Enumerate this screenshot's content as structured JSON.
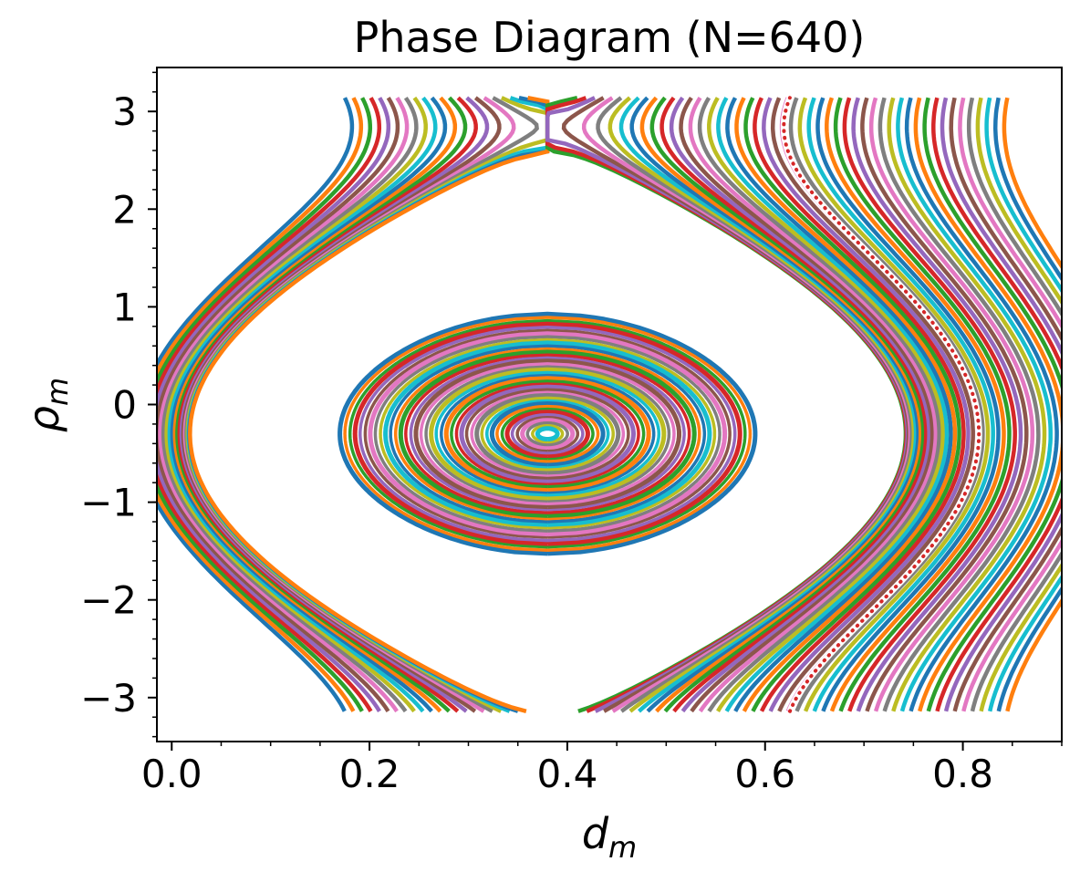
{
  "chart_data": {
    "type": "line",
    "title": "Phase Diagram (N=640)",
    "xlabel": "d",
    "xlabel_sub": "m",
    "ylabel": "ρ",
    "ylabel_sub": "m",
    "xlim": [
      -0.015,
      0.9
    ],
    "ylim": [
      -3.45,
      3.45
    ],
    "xticks": [
      0.0,
      0.2,
      0.4,
      0.6,
      0.8
    ],
    "xtick_labels": [
      "0.0",
      "0.2",
      "0.4",
      "0.6",
      "0.8"
    ],
    "yticks": [
      -3,
      -2,
      -1,
      0,
      1,
      2,
      3
    ],
    "ytick_labels": [
      "−3",
      "−2",
      "−1",
      "0",
      "1",
      "2",
      "3"
    ],
    "x_minor_step": 0.05,
    "y_minor_step": 0.2,
    "center": {
      "d": 0.38,
      "rho": -0.3
    },
    "separatrix_d_min": 0.015,
    "phase_range": [
      -3.14,
      3.14
    ],
    "closed_orbits": {
      "d_left_min": 0.17,
      "d_left_max": 0.37,
      "count": 40,
      "rho_half_width_max": 2.45
    },
    "open_orbits": {
      "left_branch": {
        "d_at_edge_min": 0.175,
        "d_at_edge_max": 0.36,
        "count": 22
      },
      "right_branch": {
        "d_at_edge_min": 0.41,
        "d_at_edge_max": 0.845,
        "count": 50
      }
    },
    "highlighted_orbit": {
      "d_at_edge": 0.625,
      "style": "dotted",
      "color": "#d62728"
    },
    "colors": [
      "#1f77b4",
      "#ff7f0e",
      "#2ca02c",
      "#d62728",
      "#9467bd",
      "#8c564b",
      "#e377c2",
      "#7f7f7f",
      "#bcbd22",
      "#17becf"
    ],
    "grid": false,
    "legend": "none"
  }
}
